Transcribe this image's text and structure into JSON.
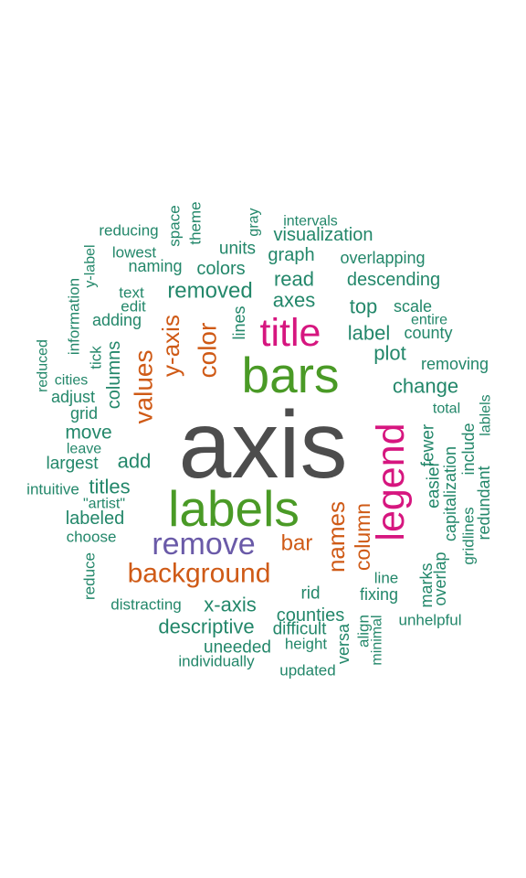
{
  "colors": {
    "gray": "#4d4d4d",
    "green": "#4a9a26",
    "magenta": "#d6167f",
    "orange": "#cf5a16",
    "purple": "#6a5aa8",
    "teal": "#23876a"
  },
  "words": [
    {
      "text": "axis",
      "color": "gray",
      "size": 1.0,
      "vertical": false
    },
    {
      "text": "labels",
      "color": "green",
      "size": 0.62,
      "vertical": false
    },
    {
      "text": "bars",
      "color": "green",
      "size": 0.62,
      "vertical": false
    },
    {
      "text": "legend",
      "color": "magenta",
      "size": 0.5,
      "vertical": true
    },
    {
      "text": "title",
      "color": "magenta",
      "size": 0.5,
      "vertical": false
    },
    {
      "text": "remove",
      "color": "purple",
      "size": 0.4,
      "vertical": false
    },
    {
      "text": "background",
      "color": "orange",
      "size": 0.35,
      "vertical": false
    },
    {
      "text": "values",
      "color": "orange",
      "size": 0.33,
      "vertical": true
    },
    {
      "text": "color",
      "color": "orange",
      "size": 0.33,
      "vertical": true
    },
    {
      "text": "y-axis",
      "color": "orange",
      "size": 0.3,
      "vertical": true
    },
    {
      "text": "names",
      "color": "orange",
      "size": 0.3,
      "vertical": true
    },
    {
      "text": "bar",
      "color": "orange",
      "size": 0.27,
      "vertical": false
    },
    {
      "text": "column",
      "color": "orange",
      "size": 0.25,
      "vertical": true
    },
    {
      "text": "removed",
      "color": "teal",
      "size": 0.26,
      "vertical": false
    },
    {
      "text": "change",
      "color": "teal",
      "size": 0.24,
      "vertical": false
    },
    {
      "text": "descriptive",
      "color": "teal",
      "size": 0.23,
      "vertical": false
    },
    {
      "text": "x-axis",
      "color": "teal",
      "size": 0.23,
      "vertical": false
    },
    {
      "text": "read",
      "color": "teal",
      "size": 0.24,
      "vertical": false
    },
    {
      "text": "axes",
      "color": "teal",
      "size": 0.24,
      "vertical": false
    },
    {
      "text": "top",
      "color": "teal",
      "size": 0.24,
      "vertical": false
    },
    {
      "text": "label",
      "color": "teal",
      "size": 0.24,
      "vertical": false
    },
    {
      "text": "plot",
      "color": "teal",
      "size": 0.24,
      "vertical": false
    },
    {
      "text": "add",
      "color": "teal",
      "size": 0.24,
      "vertical": false
    },
    {
      "text": "titles",
      "color": "teal",
      "size": 0.23,
      "vertical": false
    },
    {
      "text": "move",
      "color": "teal",
      "size": 0.22,
      "vertical": false
    },
    {
      "text": "columns",
      "color": "teal",
      "size": 0.21,
      "vertical": true
    },
    {
      "text": "colors",
      "color": "teal",
      "size": 0.21,
      "vertical": false
    },
    {
      "text": "counties",
      "color": "teal",
      "size": 0.21,
      "vertical": false
    },
    {
      "text": "labeled",
      "color": "teal",
      "size": 0.2,
      "vertical": false
    },
    {
      "text": "visualization",
      "color": "teal",
      "size": 0.2,
      "vertical": false
    },
    {
      "text": "descending",
      "color": "teal",
      "size": 0.21,
      "vertical": false
    },
    {
      "text": "graph",
      "color": "teal",
      "size": 0.2,
      "vertical": false
    },
    {
      "text": "units",
      "color": "teal",
      "size": 0.19,
      "vertical": false
    },
    {
      "text": "largest",
      "color": "teal",
      "size": 0.19,
      "vertical": false
    },
    {
      "text": "rid",
      "color": "teal",
      "size": 0.19,
      "vertical": false
    },
    {
      "text": "fewer",
      "color": "teal",
      "size": 0.19,
      "vertical": true
    },
    {
      "text": "easier",
      "color": "teal",
      "size": 0.19,
      "vertical": true
    },
    {
      "text": "uneeded",
      "color": "teal",
      "size": 0.18,
      "vertical": false
    },
    {
      "text": "difficult",
      "color": "teal",
      "size": 0.18,
      "vertical": false
    },
    {
      "text": "versa",
      "color": "teal",
      "size": 0.17,
      "vertical": true
    },
    {
      "text": "capitalization",
      "color": "teal",
      "size": 0.17,
      "vertical": true
    },
    {
      "text": "include",
      "color": "teal",
      "size": 0.17,
      "vertical": true
    },
    {
      "text": "overlapping",
      "color": "teal",
      "size": 0.17,
      "vertical": false
    },
    {
      "text": "naming",
      "color": "teal",
      "size": 0.17,
      "vertical": false
    },
    {
      "text": "marks",
      "color": "teal",
      "size": 0.17,
      "vertical": true
    },
    {
      "text": "overlap",
      "color": "teal",
      "size": 0.17,
      "vertical": true
    },
    {
      "text": "redundant",
      "color": "teal",
      "size": 0.16,
      "vertical": true
    },
    {
      "text": "lines",
      "color": "teal",
      "size": 0.16,
      "vertical": true
    },
    {
      "text": "grid",
      "color": "teal",
      "size": 0.17,
      "vertical": false
    },
    {
      "text": "adjust",
      "color": "teal",
      "size": 0.17,
      "vertical": false
    },
    {
      "text": "adding",
      "color": "teal",
      "size": 0.16,
      "vertical": false
    },
    {
      "text": "fixing",
      "color": "teal",
      "size": 0.16,
      "vertical": false
    },
    {
      "text": "removing",
      "color": "teal",
      "size": 0.16,
      "vertical": false
    },
    {
      "text": "county",
      "color": "teal",
      "size": 0.16,
      "vertical": false
    },
    {
      "text": "scale",
      "color": "teal",
      "size": 0.16,
      "vertical": false
    },
    {
      "text": "information",
      "color": "teal",
      "size": 0.15,
      "vertical": true
    },
    {
      "text": "distracting",
      "color": "teal",
      "size": 0.15,
      "vertical": false
    },
    {
      "text": "choose",
      "color": "teal",
      "size": 0.15,
      "vertical": false
    },
    {
      "text": "space",
      "color": "teal",
      "size": 0.15,
      "vertical": true
    },
    {
      "text": "theme",
      "color": "teal",
      "size": 0.15,
      "vertical": true
    },
    {
      "text": "edit",
      "color": "teal",
      "size": 0.15,
      "vertical": false
    },
    {
      "text": "text",
      "color": "teal",
      "size": 0.15,
      "vertical": false
    },
    {
      "text": "line",
      "color": "teal",
      "size": 0.15,
      "vertical": false
    },
    {
      "text": "unhelpful",
      "color": "teal",
      "size": 0.14,
      "vertical": false
    },
    {
      "text": "gridlines",
      "color": "teal",
      "size": 0.14,
      "vertical": true
    },
    {
      "text": "align",
      "color": "teal",
      "size": 0.14,
      "vertical": true
    },
    {
      "text": "reduce",
      "color": "teal",
      "size": 0.15,
      "vertical": true
    },
    {
      "text": "tick",
      "color": "teal",
      "size": 0.15,
      "vertical": true
    },
    {
      "text": "intuitive",
      "color": "teal",
      "size": 0.14,
      "vertical": false
    },
    {
      "text": "\"artist\"",
      "color": "teal",
      "size": 0.13,
      "vertical": false
    },
    {
      "text": "leave",
      "color": "teal",
      "size": 0.13,
      "vertical": false
    },
    {
      "text": "entire",
      "color": "teal",
      "size": 0.13,
      "vertical": false
    },
    {
      "text": "height",
      "color": "teal",
      "size": 0.14,
      "vertical": false
    },
    {
      "text": "minimal",
      "color": "teal",
      "size": 0.13,
      "vertical": true
    },
    {
      "text": "individually",
      "color": "teal",
      "size": 0.14,
      "vertical": false
    },
    {
      "text": "updated",
      "color": "teal",
      "size": 0.14,
      "vertical": false
    },
    {
      "text": "lowest",
      "color": "teal",
      "size": 0.14,
      "vertical": false
    },
    {
      "text": "reducing",
      "color": "teal",
      "size": 0.14,
      "vertical": false
    },
    {
      "text": "intervals",
      "color": "teal",
      "size": 0.13,
      "vertical": false
    },
    {
      "text": "gray",
      "color": "teal",
      "size": 0.12,
      "vertical": true
    },
    {
      "text": "y-label",
      "color": "teal",
      "size": 0.12,
      "vertical": true
    },
    {
      "text": "reduced",
      "color": "teal",
      "size": 0.13,
      "vertical": true
    },
    {
      "text": "cities",
      "color": "teal",
      "size": 0.13,
      "vertical": false
    },
    {
      "text": "total",
      "color": "teal",
      "size": 0.13,
      "vertical": false
    },
    {
      "text": "lablels",
      "color": "teal",
      "size": 0.12,
      "vertical": true
    }
  ]
}
